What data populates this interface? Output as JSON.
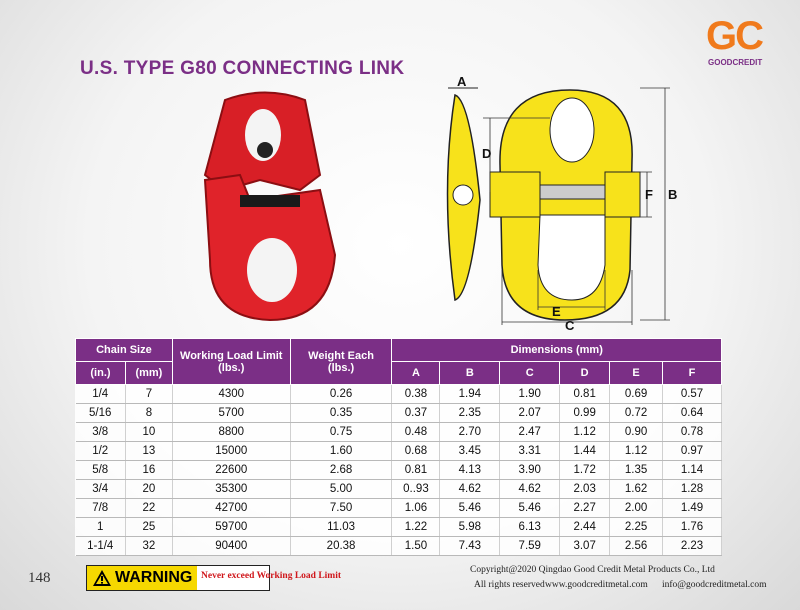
{
  "logo": {
    "mark": "GC",
    "name": "GOODCREDIT"
  },
  "title": "U.S. TYPE G80 CONNECTING LINK",
  "diagram_labels": {
    "a": "A",
    "d": "D",
    "f": "F",
    "b": "B",
    "e": "E",
    "c": "C"
  },
  "table": {
    "header": {
      "chain_size": "Chain Size",
      "in": "(in.)",
      "mm": "(mm)",
      "wll": "Working Load Limit",
      "wll_unit": "(lbs.)",
      "weight": "Weight Each",
      "weight_unit": "(lbs.)",
      "dimensions": "Dimensions (mm)",
      "dims": [
        "A",
        "B",
        "C",
        "D",
        "E",
        "F"
      ]
    },
    "rows": [
      [
        "1/4",
        "7",
        "4300",
        "0.26",
        "0.38",
        "1.94",
        "1.90",
        "0.81",
        "0.69",
        "0.57"
      ],
      [
        "5/16",
        "8",
        "5700",
        "0.35",
        "0.37",
        "2.35",
        "2.07",
        "0.99",
        "0.72",
        "0.64"
      ],
      [
        "3/8",
        "10",
        "8800",
        "0.75",
        "0.48",
        "2.70",
        "2.47",
        "1.12",
        "0.90",
        "0.78"
      ],
      [
        "1/2",
        "13",
        "15000",
        "1.60",
        "0.68",
        "3.45",
        "3.31",
        "1.44",
        "1.12",
        "0.97"
      ],
      [
        "5/8",
        "16",
        "22600",
        "2.68",
        "0.81",
        "4.13",
        "3.90",
        "1.72",
        "1.35",
        "1.14"
      ],
      [
        "3/4",
        "20",
        "35300",
        "5.00",
        "0..93",
        "4.62",
        "4.62",
        "2.03",
        "1.62",
        "1.28"
      ],
      [
        "7/8",
        "22",
        "42700",
        "7.50",
        "1.06",
        "5.46",
        "5.46",
        "2.27",
        "2.00",
        "1.49"
      ],
      [
        "1",
        "25",
        "59700",
        "11.03",
        "1.22",
        "5.98",
        "6.13",
        "2.44",
        "2.25",
        "1.76"
      ],
      [
        "1-1/4",
        "32",
        "90400",
        "20.38",
        "1.50",
        "7.43",
        "7.59",
        "3.07",
        "2.56",
        "2.23"
      ]
    ]
  },
  "page_number": "148",
  "warning": {
    "label": "WARNING",
    "text": "Never exceed Working Load Limit"
  },
  "footer": {
    "copyright": "Copyright@2020 Qingdao Good Credit Metal Products Co., Ltd",
    "rights": "All rights reserved",
    "website": "www.goodcreditmetal.com",
    "email": "info@goodcreditmetal.com"
  }
}
